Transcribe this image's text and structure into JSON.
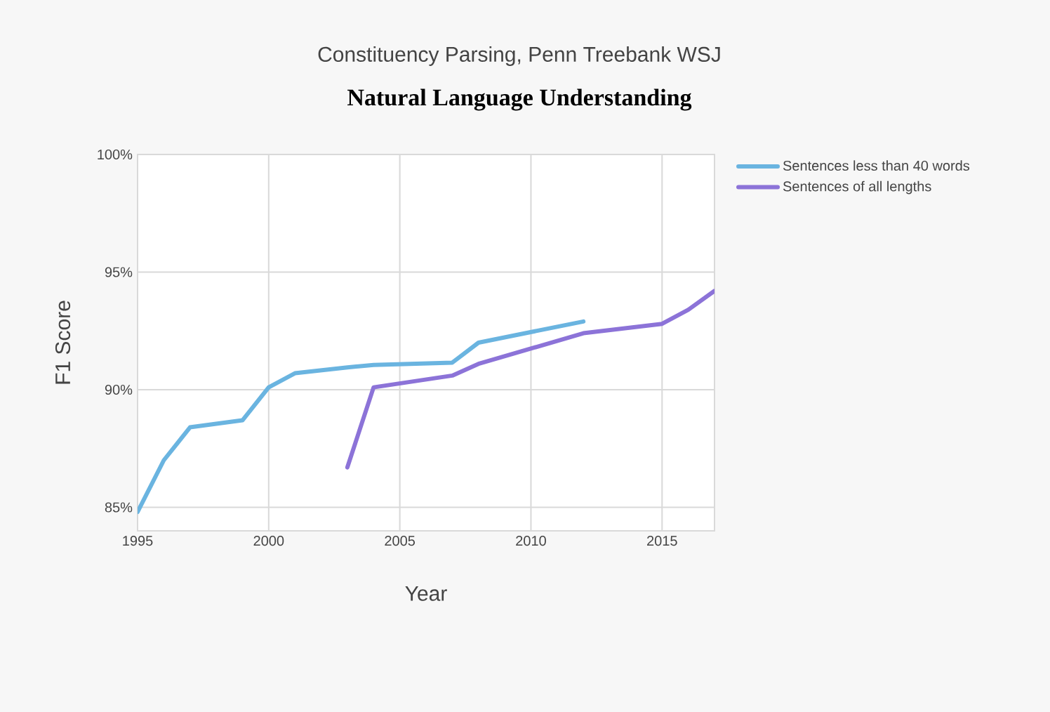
{
  "chart_data": {
    "type": "line",
    "title": "Constituency Parsing, Penn Treebank WSJ",
    "subtitle": "Natural Language Understanding",
    "xlabel": "Year",
    "ylabel": "F1 Score",
    "series": [
      {
        "name": "Sentences less than 40 words",
        "color": "#6ab4e0",
        "x": [
          1995,
          1996,
          1997,
          1999,
          2000,
          2001,
          2003,
          2004,
          2007,
          2008,
          2012
        ],
        "values": [
          84.8,
          87.0,
          88.4,
          88.7,
          90.1,
          90.7,
          90.95,
          91.05,
          91.15,
          92.0,
          92.9
        ]
      },
      {
        "name": "Sentences of all lengths",
        "color": "#8c73d8",
        "x": [
          2003,
          2004,
          2007,
          2008,
          2012,
          2015,
          2016,
          2017
        ],
        "values": [
          86.7,
          90.1,
          90.6,
          91.1,
          92.4,
          92.8,
          93.4,
          94.2
        ]
      }
    ],
    "xlim": [
      1995,
      2017
    ],
    "ylim": [
      84,
      100
    ],
    "xticks": [
      1995,
      2000,
      2005,
      2010,
      2015
    ],
    "yticks": [
      {
        "value": 85,
        "label": "85%"
      },
      {
        "value": 90,
        "label": "90%"
      },
      {
        "value": 95,
        "label": "95%"
      },
      {
        "value": 100,
        "label": "100%"
      }
    ],
    "grid": true,
    "legend": "right",
    "marker": "none",
    "line_style": "solid"
  }
}
